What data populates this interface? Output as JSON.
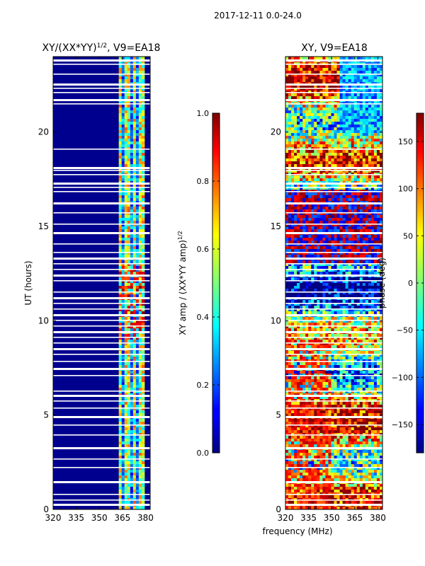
{
  "figure": {
    "suptitle": "2017-12-11 0.0-24.0",
    "xlabel": "frequency (MHz)"
  },
  "chart_data": [
    {
      "type": "heatmap",
      "title_main": "XY/(XX*YY)",
      "title_exp": "1/2",
      "title_rest": ", V9=EA18",
      "xlabel": "",
      "ylabel": "UT (hours)",
      "xlim": [
        320,
        383
      ],
      "ylim": [
        0,
        24
      ],
      "xticks": [
        "320",
        "335",
        "350",
        "365",
        "380"
      ],
      "yticks": [
        "0",
        "5",
        "10",
        "15",
        "20"
      ],
      "colormap": "jet",
      "colorbar": {
        "label_main": "XY amp / (XX*YY amp)",
        "label_exp": "1/2",
        "range": [
          0.0,
          1.0
        ],
        "ticks": [
          "0.0",
          "0.2",
          "0.4",
          "0.6",
          "0.8",
          "1.0"
        ]
      }
    },
    {
      "type": "heatmap",
      "title": "XY, V9=EA18",
      "xlabel": "frequency (MHz)",
      "ylabel": "",
      "xlim": [
        320,
        383
      ],
      "ylim": [
        0,
        24
      ],
      "xticks": [
        "320",
        "335",
        "350",
        "365",
        "380"
      ],
      "yticks": [
        "0",
        "5",
        "10",
        "15",
        "20"
      ],
      "colormap": "jet",
      "colorbar": {
        "label": "phase (deg)",
        "range": [
          -180,
          180
        ],
        "ticks": [
          "−150",
          "−100",
          "−50",
          "0",
          "50",
          "100",
          "150"
        ]
      }
    }
  ]
}
